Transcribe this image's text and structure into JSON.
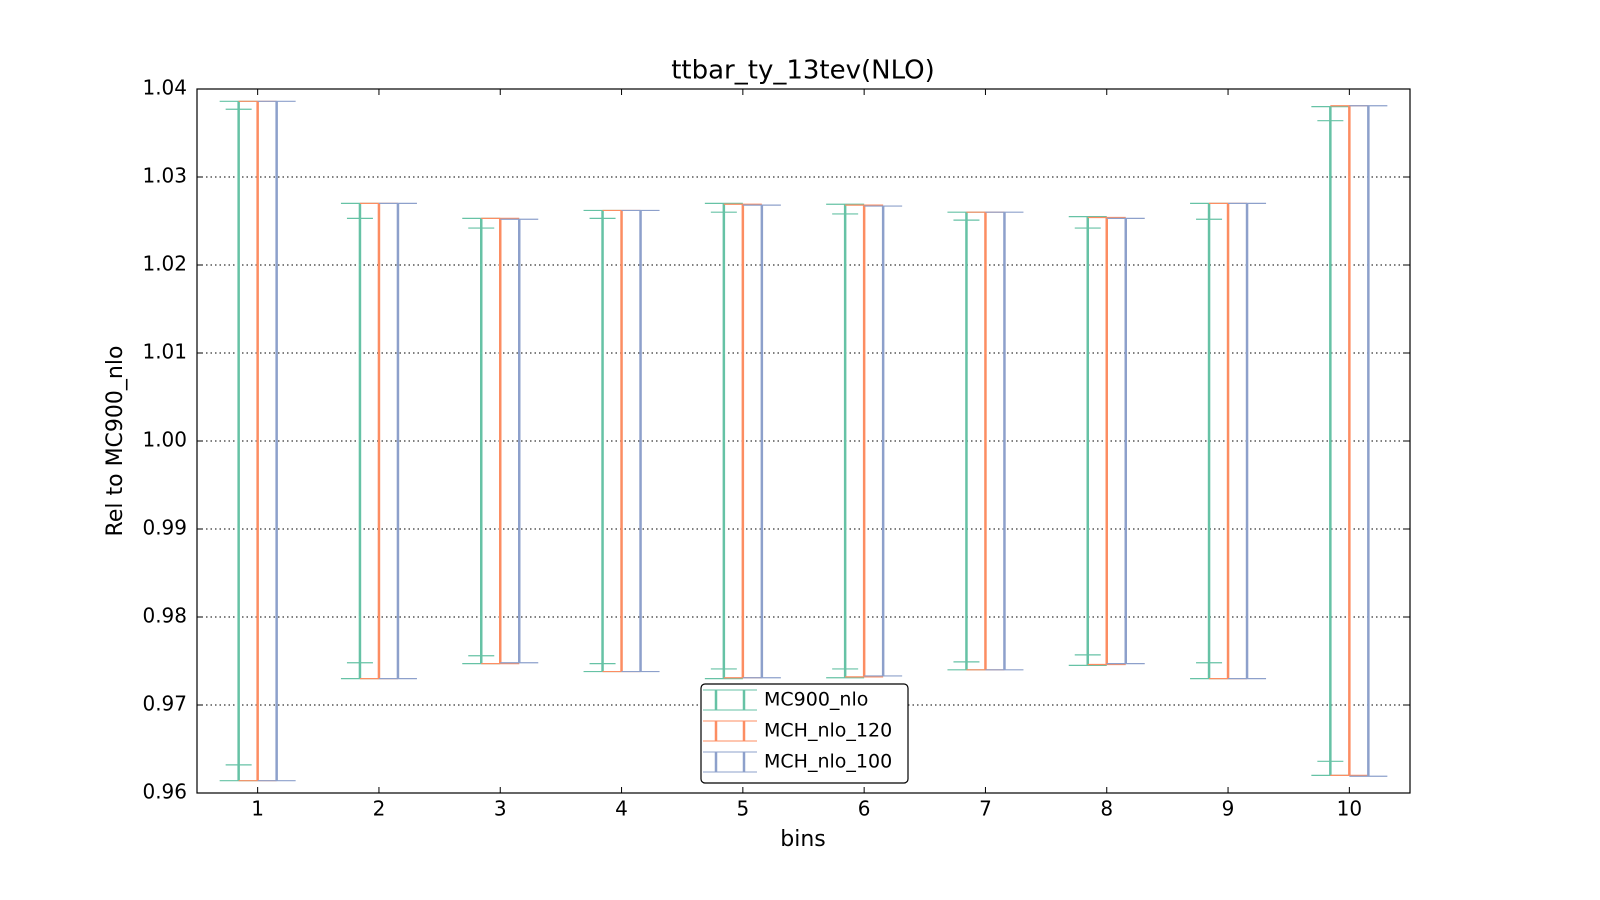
{
  "chart_data": {
    "type": "errorbar",
    "title": "ttbar_ty_13tev(NLO)",
    "x_label": "bins",
    "y_label": "Rel to MC900_nlo",
    "x": [
      1,
      2,
      3,
      4,
      5,
      6,
      7,
      8,
      9,
      10
    ],
    "xlim": [
      0.5,
      10.5
    ],
    "xticks": [
      1,
      2,
      3,
      4,
      5,
      6,
      7,
      8,
      9,
      10
    ],
    "ylim": [
      0.96,
      1.04
    ],
    "yticks": [
      0.96,
      0.97,
      0.98,
      0.99,
      {
        "value": 1.0,
        "label": "1.00"
      },
      1.01,
      1.02,
      1.03,
      1.04
    ],
    "grid": true,
    "legend": "lower center",
    "series": [
      {
        "name": "MC900_nlo",
        "color": "#66c2a5",
        "upper": [
          1.0386,
          1.027,
          1.0253,
          1.0262,
          1.027,
          1.0269,
          1.026,
          1.0255,
          1.027,
          1.038
        ],
        "lower": [
          0.9614,
          0.973,
          0.9747,
          0.9738,
          0.973,
          0.9731,
          0.974,
          0.9745,
          0.973,
          0.962
        ],
        "inner_upper": [
          1.0377,
          1.0253,
          1.0242,
          1.0253,
          1.026,
          1.0258,
          1.0251,
          1.0242,
          1.0252,
          1.0364
        ],
        "inner_lower": [
          0.9632,
          0.9748,
          0.9756,
          0.9747,
          0.9741,
          0.9741,
          0.9749,
          0.9757,
          0.9748,
          0.9636
        ]
      },
      {
        "name": "MCH_nlo_120",
        "color": "#fc8d62",
        "upper": [
          1.0386,
          1.027,
          1.0253,
          1.0262,
          1.0269,
          1.0268,
          1.026,
          1.0254,
          1.027,
          1.0381
        ],
        "lower": [
          0.9614,
          0.973,
          0.9747,
          0.9738,
          0.9731,
          0.9732,
          0.974,
          0.9746,
          0.973,
          0.962
        ]
      },
      {
        "name": "MCH_nlo_100",
        "color": "#8da0cb",
        "upper": [
          1.0386,
          1.027,
          1.0252,
          1.0262,
          1.0268,
          1.0267,
          1.026,
          1.0253,
          1.027,
          1.0381
        ],
        "lower": [
          0.9614,
          0.973,
          0.9748,
          0.9738,
          0.9731,
          0.9733,
          0.974,
          0.9747,
          0.973,
          0.9619
        ]
      }
    ]
  }
}
